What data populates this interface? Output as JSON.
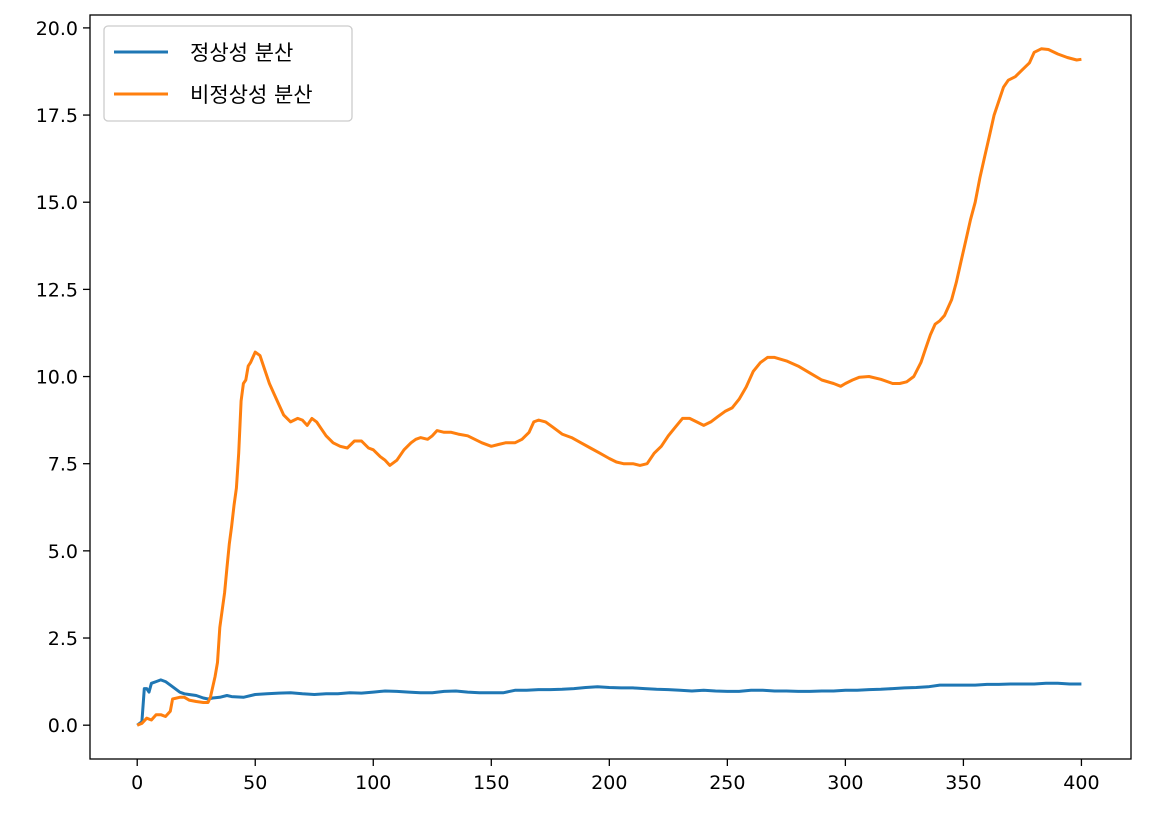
{
  "chart_data": {
    "type": "line",
    "xlim": [
      -20,
      421
    ],
    "ylim": [
      -0.97,
      20.37
    ],
    "xticks": [
      0,
      50,
      100,
      150,
      200,
      250,
      300,
      350,
      400
    ],
    "xtick_labels": [
      "0",
      "50",
      "100",
      "150",
      "200",
      "250",
      "300",
      "350",
      "400"
    ],
    "yticks": [
      0.0,
      2.5,
      5.0,
      7.5,
      10.0,
      12.5,
      15.0,
      17.5,
      20.0
    ],
    "ytick_labels": [
      "0.0",
      "2.5",
      "5.0",
      "7.5",
      "10.0",
      "12.5",
      "15.0",
      "17.5",
      "20.0"
    ],
    "grid": false,
    "legend_position": "upper-left",
    "series": [
      {
        "name": "정상성 분산",
        "color": "#1f77b4",
        "points": [
          [
            0,
            0
          ],
          [
            2,
            0.1
          ],
          [
            3,
            1.05
          ],
          [
            4,
            1.05
          ],
          [
            5,
            0.95
          ],
          [
            6,
            1.2
          ],
          [
            8,
            1.25
          ],
          [
            10,
            1.3
          ],
          [
            12,
            1.25
          ],
          [
            14,
            1.15
          ],
          [
            16,
            1.05
          ],
          [
            18,
            0.95
          ],
          [
            20,
            0.9
          ],
          [
            22,
            0.88
          ],
          [
            25,
            0.85
          ],
          [
            28,
            0.78
          ],
          [
            30,
            0.75
          ],
          [
            32,
            0.78
          ],
          [
            35,
            0.8
          ],
          [
            38,
            0.85
          ],
          [
            40,
            0.82
          ],
          [
            45,
            0.8
          ],
          [
            50,
            0.88
          ],
          [
            55,
            0.9
          ],
          [
            60,
            0.92
          ],
          [
            65,
            0.93
          ],
          [
            70,
            0.9
          ],
          [
            75,
            0.88
          ],
          [
            80,
            0.9
          ],
          [
            85,
            0.9
          ],
          [
            90,
            0.93
          ],
          [
            95,
            0.92
          ],
          [
            100,
            0.95
          ],
          [
            105,
            0.98
          ],
          [
            110,
            0.97
          ],
          [
            115,
            0.95
          ],
          [
            120,
            0.93
          ],
          [
            125,
            0.93
          ],
          [
            130,
            0.97
          ],
          [
            135,
            0.98
          ],
          [
            140,
            0.95
          ],
          [
            145,
            0.93
          ],
          [
            150,
            0.93
          ],
          [
            155,
            0.93
          ],
          [
            160,
            1.0
          ],
          [
            165,
            1.0
          ],
          [
            170,
            1.02
          ],
          [
            175,
            1.02
          ],
          [
            180,
            1.03
          ],
          [
            185,
            1.05
          ],
          [
            190,
            1.08
          ],
          [
            195,
            1.1
          ],
          [
            200,
            1.08
          ],
          [
            205,
            1.07
          ],
          [
            210,
            1.07
          ],
          [
            215,
            1.05
          ],
          [
            220,
            1.03
          ],
          [
            225,
            1.02
          ],
          [
            230,
            1.0
          ],
          [
            235,
            0.98
          ],
          [
            240,
            1.0
          ],
          [
            245,
            0.98
          ],
          [
            250,
            0.97
          ],
          [
            255,
            0.97
          ],
          [
            260,
            1.0
          ],
          [
            265,
            1.0
          ],
          [
            270,
            0.98
          ],
          [
            275,
            0.98
          ],
          [
            280,
            0.97
          ],
          [
            285,
            0.97
          ],
          [
            290,
            0.98
          ],
          [
            295,
            0.98
          ],
          [
            300,
            1.0
          ],
          [
            305,
            1.0
          ],
          [
            310,
            1.02
          ],
          [
            315,
            1.03
          ],
          [
            320,
            1.05
          ],
          [
            325,
            1.07
          ],
          [
            330,
            1.08
          ],
          [
            335,
            1.1
          ],
          [
            340,
            1.15
          ],
          [
            345,
            1.15
          ],
          [
            350,
            1.15
          ],
          [
            355,
            1.15
          ],
          [
            360,
            1.17
          ],
          [
            365,
            1.17
          ],
          [
            370,
            1.18
          ],
          [
            375,
            1.18
          ],
          [
            380,
            1.18
          ],
          [
            385,
            1.2
          ],
          [
            390,
            1.2
          ],
          [
            395,
            1.18
          ],
          [
            400,
            1.18
          ]
        ]
      },
      {
        "name": "비정상성 분산",
        "color": "#ff7f0e",
        "points": [
          [
            0,
            0
          ],
          [
            2,
            0.05
          ],
          [
            4,
            0.2
          ],
          [
            6,
            0.15
          ],
          [
            8,
            0.3
          ],
          [
            10,
            0.3
          ],
          [
            12,
            0.25
          ],
          [
            14,
            0.4
          ],
          [
            15,
            0.75
          ],
          [
            18,
            0.8
          ],
          [
            20,
            0.8
          ],
          [
            22,
            0.72
          ],
          [
            25,
            0.68
          ],
          [
            28,
            0.65
          ],
          [
            30,
            0.65
          ],
          [
            31,
            0.8
          ],
          [
            33,
            1.4
          ],
          [
            34,
            1.8
          ],
          [
            35,
            2.8
          ],
          [
            36,
            3.3
          ],
          [
            37,
            3.8
          ],
          [
            38,
            4.5
          ],
          [
            39,
            5.2
          ],
          [
            40,
            5.7
          ],
          [
            41,
            6.3
          ],
          [
            42,
            6.8
          ],
          [
            43,
            7.8
          ],
          [
            44,
            9.3
          ],
          [
            45,
            9.8
          ],
          [
            46,
            9.9
          ],
          [
            47,
            10.3
          ],
          [
            48,
            10.4
          ],
          [
            50,
            10.7
          ],
          [
            52,
            10.6
          ],
          [
            54,
            10.2
          ],
          [
            56,
            9.8
          ],
          [
            58,
            9.5
          ],
          [
            60,
            9.2
          ],
          [
            62,
            8.9
          ],
          [
            65,
            8.7
          ],
          [
            68,
            8.8
          ],
          [
            70,
            8.75
          ],
          [
            72,
            8.6
          ],
          [
            74,
            8.8
          ],
          [
            76,
            8.7
          ],
          [
            78,
            8.5
          ],
          [
            80,
            8.3
          ],
          [
            83,
            8.1
          ],
          [
            86,
            8.0
          ],
          [
            89,
            7.95
          ],
          [
            92,
            8.15
          ],
          [
            95,
            8.15
          ],
          [
            98,
            7.95
          ],
          [
            100,
            7.9
          ],
          [
            103,
            7.7
          ],
          [
            105,
            7.6
          ],
          [
            107,
            7.45
          ],
          [
            110,
            7.6
          ],
          [
            113,
            7.9
          ],
          [
            116,
            8.1
          ],
          [
            118,
            8.2
          ],
          [
            120,
            8.25
          ],
          [
            123,
            8.2
          ],
          [
            125,
            8.3
          ],
          [
            127,
            8.45
          ],
          [
            130,
            8.4
          ],
          [
            133,
            8.4
          ],
          [
            136,
            8.35
          ],
          [
            140,
            8.3
          ],
          [
            143,
            8.2
          ],
          [
            146,
            8.1
          ],
          [
            150,
            8.0
          ],
          [
            153,
            8.05
          ],
          [
            156,
            8.1
          ],
          [
            160,
            8.1
          ],
          [
            163,
            8.2
          ],
          [
            166,
            8.4
          ],
          [
            168,
            8.7
          ],
          [
            170,
            8.75
          ],
          [
            173,
            8.7
          ],
          [
            176,
            8.55
          ],
          [
            180,
            8.35
          ],
          [
            184,
            8.25
          ],
          [
            188,
            8.1
          ],
          [
            192,
            7.95
          ],
          [
            196,
            7.8
          ],
          [
            200,
            7.65
          ],
          [
            203,
            7.55
          ],
          [
            206,
            7.5
          ],
          [
            210,
            7.5
          ],
          [
            213,
            7.45
          ],
          [
            216,
            7.5
          ],
          [
            219,
            7.8
          ],
          [
            222,
            8.0
          ],
          [
            225,
            8.3
          ],
          [
            228,
            8.55
          ],
          [
            231,
            8.8
          ],
          [
            234,
            8.8
          ],
          [
            237,
            8.7
          ],
          [
            240,
            8.6
          ],
          [
            243,
            8.7
          ],
          [
            246,
            8.85
          ],
          [
            249,
            9.0
          ],
          [
            252,
            9.1
          ],
          [
            255,
            9.35
          ],
          [
            258,
            9.7
          ],
          [
            261,
            10.15
          ],
          [
            264,
            10.4
          ],
          [
            267,
            10.55
          ],
          [
            270,
            10.55
          ],
          [
            275,
            10.45
          ],
          [
            280,
            10.3
          ],
          [
            285,
            10.1
          ],
          [
            290,
            9.9
          ],
          [
            295,
            9.8
          ],
          [
            298,
            9.72
          ],
          [
            300,
            9.8
          ],
          [
            303,
            9.9
          ],
          [
            306,
            9.98
          ],
          [
            310,
            10.0
          ],
          [
            315,
            9.92
          ],
          [
            320,
            9.8
          ],
          [
            323,
            9.8
          ],
          [
            326,
            9.85
          ],
          [
            329,
            10.0
          ],
          [
            332,
            10.4
          ],
          [
            334,
            10.8
          ],
          [
            336,
            11.2
          ],
          [
            338,
            11.5
          ],
          [
            340,
            11.6
          ],
          [
            342,
            11.75
          ],
          [
            345,
            12.2
          ],
          [
            347,
            12.7
          ],
          [
            349,
            13.3
          ],
          [
            351,
            13.9
          ],
          [
            353,
            14.5
          ],
          [
            355,
            15.0
          ],
          [
            357,
            15.7
          ],
          [
            359,
            16.3
          ],
          [
            361,
            16.9
          ],
          [
            363,
            17.5
          ],
          [
            365,
            17.9
          ],
          [
            367,
            18.3
          ],
          [
            369,
            18.5
          ],
          [
            372,
            18.6
          ],
          [
            375,
            18.8
          ],
          [
            378,
            19.0
          ],
          [
            380,
            19.3
          ],
          [
            383,
            19.4
          ],
          [
            386,
            19.38
          ],
          [
            390,
            19.25
          ],
          [
            394,
            19.15
          ],
          [
            398,
            19.08
          ],
          [
            400,
            19.1
          ]
        ]
      }
    ]
  }
}
